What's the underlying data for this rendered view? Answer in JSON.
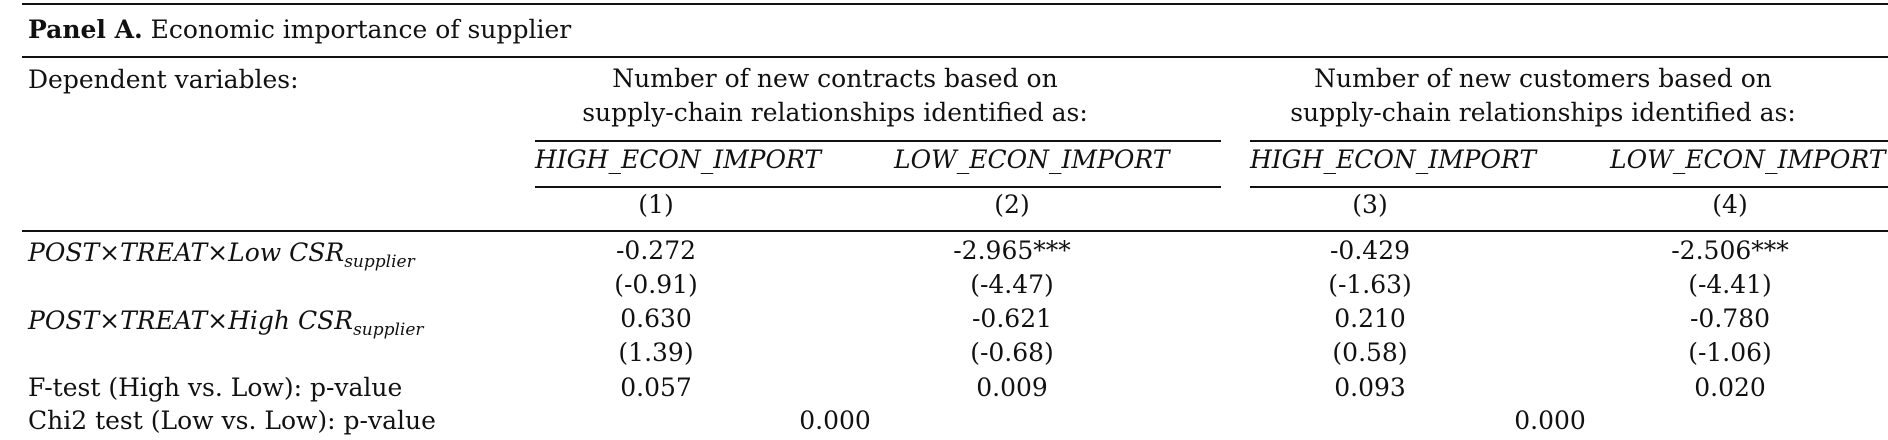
{
  "panel": {
    "label": "Panel A.",
    "title": "Economic importance of supplier"
  },
  "header": {
    "dependent_label": "Dependent variables:",
    "group1": {
      "line1": "Number of new contracts based on",
      "line2": "supply-chain relationships identified as:"
    },
    "group2": {
      "line1": "Number of new customers based on",
      "line2": "supply-chain relationships identified as:"
    },
    "columns": [
      {
        "name": "HIGH_ECON_IMPORT",
        "num": "(1)"
      },
      {
        "name": "LOW_ECON_IMPORT",
        "num": "(2)"
      },
      {
        "name": "HIGH_ECON_IMPORT",
        "num": "(3)"
      },
      {
        "name": "LOW_ECON_IMPORT",
        "num": "(4)"
      }
    ]
  },
  "rows": [
    {
      "label_main": "POST×TREAT×Low CSR",
      "label_sub": "supplier",
      "coef": [
        "-0.272",
        "-2.965***",
        "-0.429",
        "-2.506***"
      ],
      "tstat": [
        "(-0.91)",
        "(-4.47)",
        "(-1.63)",
        "(-4.41)"
      ]
    },
    {
      "label_main": "POST×TREAT×High CSR",
      "label_sub": "supplier",
      "coef": [
        "0.630",
        "-0.621",
        "0.210",
        "-0.780"
      ],
      "tstat": [
        "(1.39)",
        "(-0.68)",
        "(0.58)",
        "(-1.06)"
      ]
    }
  ],
  "ftest": {
    "label": "F-test (High vs. Low): p-value",
    "values": [
      "0.057",
      "0.009",
      "0.093",
      "0.020"
    ]
  },
  "chi2": {
    "label": "Chi2 test (Low vs. Low): p-value",
    "values": [
      "0.000",
      "0.000"
    ]
  }
}
